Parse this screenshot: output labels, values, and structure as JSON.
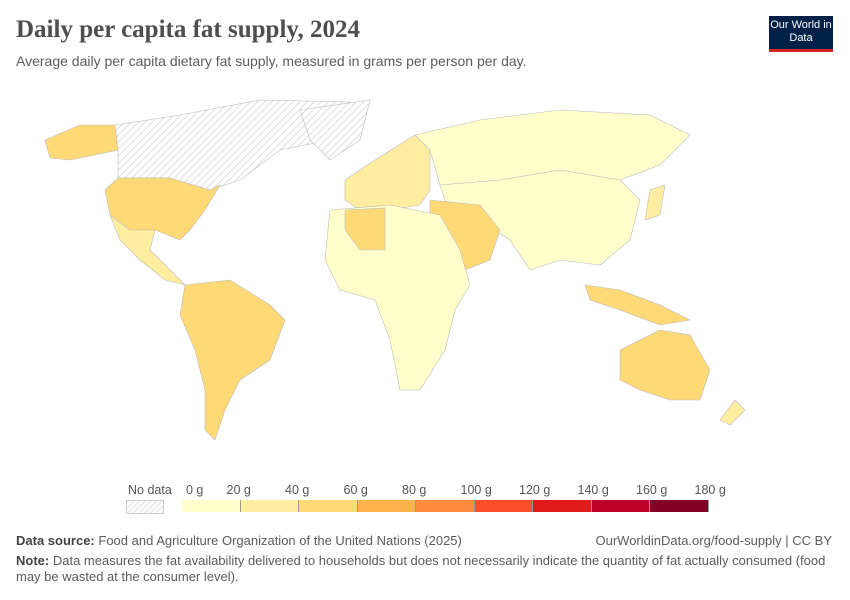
{
  "header": {
    "title": "Daily per capita fat supply, 2024",
    "subtitle": "Average daily per capita dietary fat supply, measured in grams per person per day.",
    "logo_text": "Our World in Data"
  },
  "legend": {
    "no_data_label": "No data",
    "ticks": [
      "0 g",
      "20 g",
      "40 g",
      "60 g",
      "80 g",
      "100 g",
      "120 g",
      "140 g",
      "160 g",
      "180 g"
    ],
    "colors": [
      "#ffffcc",
      "#ffeda0",
      "#fed976",
      "#feb24c",
      "#fd8d3c",
      "#fc4e2a",
      "#e31a1c",
      "#bd0026",
      "#800026"
    ]
  },
  "footer": {
    "source_label": "Data source:",
    "source_text": "Food and Agriculture Organization of the United Nations (2025)",
    "url": "OurWorldinData.org/food-supply | CC BY",
    "note_label": "Note:",
    "note_text": "Data measures the fat availability delivered to households but does not necessarily indicate the quantity of fat actually consumed (food may be wasted at the consumer level)."
  }
}
